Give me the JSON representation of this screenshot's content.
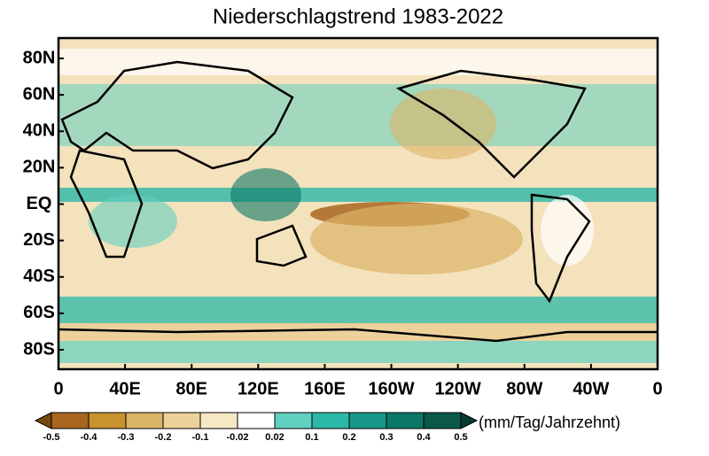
{
  "title": "Niederschlagstrend 1983-2022",
  "lat_labels": [
    "80N",
    "60N",
    "40N",
    "20N",
    "EQ",
    "20S",
    "40S",
    "60S",
    "80S"
  ],
  "lon_labels": [
    "0",
    "40E",
    "80E",
    "120E",
    "160E",
    "160W",
    "120W",
    "80W",
    "40W",
    "0"
  ],
  "colorbar": {
    "unit": "(mm/Tag/Jahrzehnt)",
    "levels": [
      -0.5,
      -0.4,
      -0.3,
      -0.2,
      -0.1,
      -0.02,
      0.02,
      0.1,
      0.2,
      0.3,
      0.4,
      0.5
    ],
    "colors": [
      "#7a4a0c",
      "#a8661e",
      "#c8922e",
      "#dcb468",
      "#ecd29a",
      "#f7e8c4",
      "#ffffff",
      "#60d0c0",
      "#2cb8a8",
      "#189888",
      "#0c7868",
      "#0a5848",
      "#083c30"
    ]
  }
}
